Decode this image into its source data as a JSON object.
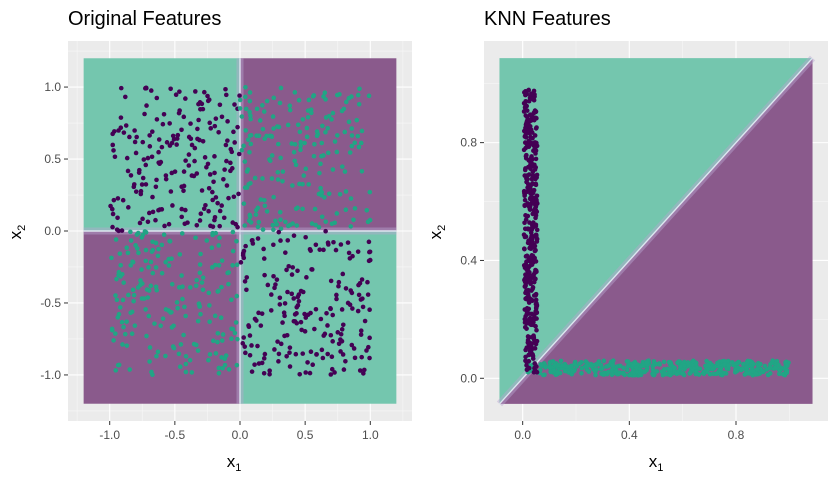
{
  "colors": {
    "panel_bg": "#ebebeb",
    "grid_major": "#ffffff",
    "class_dark": "#440154",
    "class_teal": "#21a585",
    "region_teal": "#74c6ae",
    "region_purple": "#8a5a8c",
    "boundary": "#dde6f0",
    "tick_color": "#4d4d4d"
  },
  "chart_data": [
    {
      "type": "scatter",
      "title": "Original Features",
      "xlabel": {
        "base": "x",
        "sub": "1"
      },
      "ylabel": {
        "base": "x",
        "sub": "2"
      },
      "xlim": [
        -1.32,
        1.32
      ],
      "ylim": [
        -1.32,
        1.32
      ],
      "xticks": [
        -1.0,
        -0.5,
        0.0,
        0.5,
        1.0
      ],
      "xtick_labels": [
        "-1.0",
        "-0.5",
        "0.0",
        "0.5",
        "1.0"
      ],
      "yticks": [
        -1.0,
        -0.5,
        0.0,
        0.5,
        1.0
      ],
      "ytick_labels": [
        "-1.0",
        "-0.5",
        "0.0",
        "0.5",
        "1.0"
      ],
      "background_regions": [
        {
          "x": [
            -1.2,
            0.0
          ],
          "y": [
            0.0,
            1.2
          ],
          "fill": "region_teal"
        },
        {
          "x": [
            0.0,
            1.2
          ],
          "y": [
            0.0,
            1.2
          ],
          "fill": "region_purple"
        },
        {
          "x": [
            -1.2,
            0.0
          ],
          "y": [
            -1.2,
            0.0
          ],
          "fill": "region_purple"
        },
        {
          "x": [
            0.0,
            1.2
          ],
          "y": [
            -1.2,
            0.0
          ],
          "fill": "region_teal"
        }
      ],
      "boundaries": [
        {
          "x": [
            0.0,
            0.0
          ],
          "y": [
            -1.2,
            1.2
          ]
        },
        {
          "x": [
            -1.2,
            1.2
          ],
          "y": [
            0.0,
            0.0
          ]
        }
      ],
      "series": [
        {
          "color": "class_dark",
          "count": 200,
          "x_range": [
            -1,
            0
          ],
          "y_range": [
            0,
            1
          ],
          "seed": 11
        },
        {
          "color": "class_teal",
          "count": 200,
          "x_range": [
            0,
            1
          ],
          "y_range": [
            0,
            1
          ],
          "seed": 23
        },
        {
          "color": "class_teal",
          "count": 200,
          "x_range": [
            -1,
            0
          ],
          "y_range": [
            -1,
            0
          ],
          "seed": 37
        },
        {
          "color": "class_dark",
          "count": 200,
          "x_range": [
            0,
            1
          ],
          "y_range": [
            -1,
            0
          ],
          "seed": 51
        }
      ]
    },
    {
      "type": "scatter",
      "title": "KNN Features",
      "xlabel": {
        "base": "x",
        "sub": "1"
      },
      "ylabel": {
        "base": "x",
        "sub": "2"
      },
      "xlim": [
        -0.145,
        1.145
      ],
      "ylim": [
        -0.145,
        1.145
      ],
      "xticks": [
        0.0,
        0.4,
        0.8
      ],
      "xtick_labels": [
        "0.0",
        "0.4",
        "0.8"
      ],
      "yticks": [
        0.0,
        0.4,
        0.8
      ],
      "ytick_labels": [
        "0.0",
        "0.4",
        "0.8"
      ],
      "background_regions": [
        {
          "polygon": [
            [
              -0.087,
              -0.087
            ],
            [
              -0.087,
              1.087
            ],
            [
              1.087,
              1.087
            ]
          ],
          "fill": "region_teal"
        },
        {
          "polygon": [
            [
              -0.087,
              -0.087
            ],
            [
              1.087,
              -0.087
            ],
            [
              1.087,
              1.087
            ]
          ],
          "fill": "region_purple"
        }
      ],
      "boundaries": [
        {
          "x": [
            -0.087,
            1.087
          ],
          "y": [
            -0.087,
            1.087
          ]
        }
      ],
      "series": [
        {
          "color": "class_teal",
          "count": 400,
          "x_range": [
            0.02,
            1.0
          ],
          "y_range": [
            0.01,
            0.06
          ],
          "seed": 71
        },
        {
          "color": "class_dark",
          "count": 400,
          "x_range": [
            0.005,
            0.055
          ],
          "y_range": [
            0.02,
            0.98
          ],
          "seed": 89
        }
      ]
    }
  ]
}
